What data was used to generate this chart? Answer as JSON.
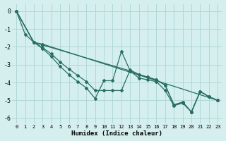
{
  "xlabel": "Humidex (Indice chaleur)",
  "background_color": "#d4efee",
  "grid_color": "#b0d8d6",
  "line_color": "#286e62",
  "xlim": [
    -0.5,
    23.5
  ],
  "ylim": [
    -6.3,
    0.4
  ],
  "yticks": [
    0,
    -1,
    -2,
    -3,
    -4,
    -5,
    -6
  ],
  "xticks": [
    0,
    1,
    2,
    3,
    4,
    5,
    6,
    7,
    8,
    9,
    10,
    11,
    12,
    13,
    14,
    15,
    16,
    17,
    18,
    19,
    20,
    21,
    22,
    23
  ],
  "lines": [
    {
      "x": [
        0,
        1,
        2,
        3,
        4,
        5,
        6,
        7,
        8,
        9,
        10,
        11,
        12,
        13,
        14,
        15,
        16,
        17,
        18,
        19,
        20,
        21,
        22,
        23
      ],
      "y": [
        0.0,
        -1.3,
        -1.75,
        -2.1,
        -2.55,
        -3.1,
        -3.55,
        -3.95,
        -4.3,
        -4.9,
        -3.9,
        -3.9,
        -2.25,
        -3.35,
        -3.75,
        -3.85,
        -3.95,
        -4.45,
        -5.3,
        -5.15,
        -5.65,
        -4.5,
        -4.8,
        -5.0
      ]
    },
    {
      "x": [
        0,
        2,
        3,
        23
      ],
      "y": [
        0.0,
        -1.75,
        -1.85,
        -5.0
      ]
    },
    {
      "x": [
        0,
        2,
        3,
        13,
        14,
        15,
        16,
        17,
        18,
        19,
        20,
        21,
        22,
        23
      ],
      "y": [
        0.0,
        -1.75,
        -1.9,
        -3.35,
        -3.55,
        -3.7,
        -3.85,
        -4.15,
        -5.25,
        -5.1,
        -5.65,
        -4.5,
        -4.8,
        -5.0
      ]
    },
    {
      "x": [
        0,
        2,
        3,
        4,
        5,
        6,
        7,
        8,
        9,
        10,
        11,
        12,
        13,
        14,
        15,
        16,
        17,
        18,
        19,
        20,
        21,
        22,
        23
      ],
      "y": [
        0.0,
        -1.75,
        -2.05,
        -2.4,
        -2.85,
        -3.25,
        -3.6,
        -3.95,
        -4.45,
        -4.45,
        -4.45,
        -4.45,
        -3.3,
        -3.55,
        -3.7,
        -3.85,
        -4.15,
        -5.25,
        -5.1,
        -5.65,
        -4.5,
        -4.8,
        -5.0
      ]
    }
  ]
}
